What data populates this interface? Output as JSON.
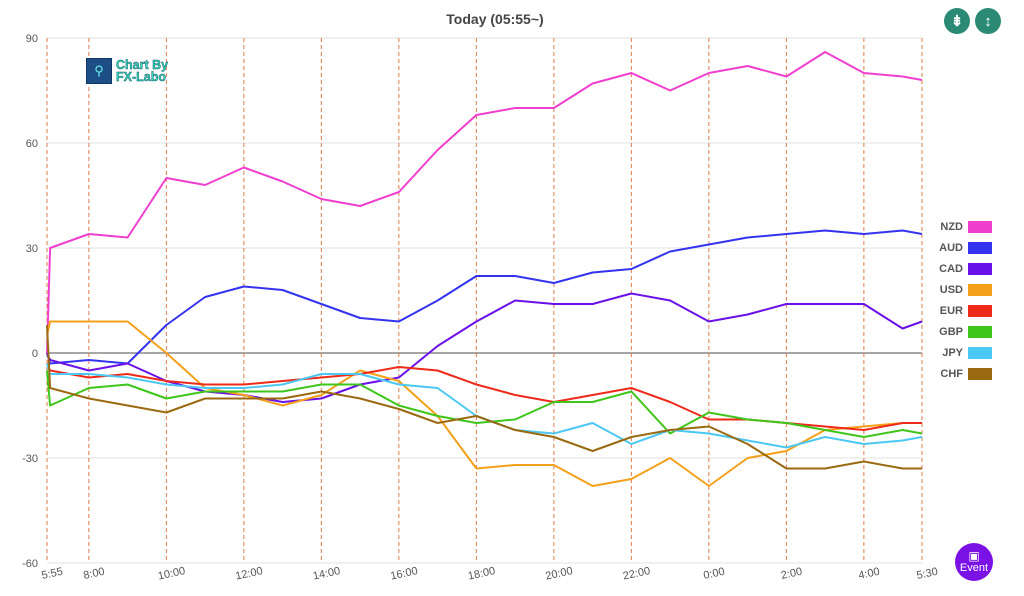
{
  "chart_data": {
    "type": "line",
    "title": "Today  (05:55~)",
    "xlabel": "",
    "ylabel": "",
    "ylim": [
      -60,
      90
    ],
    "xlim": [
      6.92,
      29.5
    ],
    "grid": true,
    "legend_position": "right",
    "y_ticks": [
      90,
      60,
      30,
      0,
      -30,
      -60
    ],
    "x_ticks": [
      {
        "label": "5:55",
        "x": 6.92
      },
      {
        "label": "8:00",
        "x": 8
      },
      {
        "label": "10:00",
        "x": 10
      },
      {
        "label": "12:00",
        "x": 12
      },
      {
        "label": "14:00",
        "x": 14
      },
      {
        "label": "16:00",
        "x": 16
      },
      {
        "label": "18:00",
        "x": 18
      },
      {
        "label": "20:00",
        "x": 20
      },
      {
        "label": "22:00",
        "x": 22
      },
      {
        "label": "0:00",
        "x": 24
      },
      {
        "label": "2:00",
        "x": 26
      },
      {
        "label": "4:00",
        "x": 28
      },
      {
        "label": "5:30",
        "x": 29.5
      }
    ],
    "x": [
      6.92,
      7,
      8,
      9,
      10,
      11,
      12,
      13,
      14,
      15,
      16,
      17,
      18,
      19,
      20,
      21,
      22,
      23,
      24,
      25,
      26,
      27,
      28,
      29,
      29.5
    ],
    "series": [
      {
        "name": "NZD",
        "color": "#f03fcf",
        "values": [
          0,
          30,
          34,
          33,
          50,
          48,
          53,
          49,
          44,
          42,
          46,
          58,
          68,
          70,
          70,
          77,
          80,
          75,
          80,
          82,
          79,
          86,
          80,
          79,
          78
        ]
      },
      {
        "name": "AUD",
        "color": "#3333f0",
        "values": [
          0,
          -3,
          -2,
          -3,
          8,
          16,
          19,
          18,
          14,
          10,
          9,
          15,
          22,
          22,
          20,
          23,
          24,
          29,
          31,
          33,
          34,
          35,
          34,
          35,
          34
        ]
      },
      {
        "name": "CAD",
        "color": "#6a10e8",
        "values": [
          0,
          -2,
          -5,
          -3,
          -8,
          -11,
          -12,
          -14,
          -13,
          -9,
          -7,
          2,
          9,
          15,
          14,
          14,
          17,
          15,
          9,
          11,
          14,
          14,
          14,
          7,
          9
        ]
      },
      {
        "name": "USD",
        "color": "#f4a01a",
        "values": [
          5,
          9,
          9,
          9,
          0,
          -10,
          -12,
          -15,
          -12,
          -5,
          -8,
          -18,
          -33,
          -32,
          -32,
          -38,
          -36,
          -30,
          -38,
          -30,
          -28,
          -22,
          -21,
          -20,
          -20
        ]
      },
      {
        "name": "EUR",
        "color": "#ee2a1a",
        "values": [
          -3,
          -5,
          -7,
          -6,
          -8,
          -9,
          -9,
          -8,
          -7,
          -6,
          -4,
          -5,
          -9,
          -12,
          -14,
          -12,
          -10,
          -14,
          -19,
          -19,
          -20,
          -21,
          -22,
          -20,
          -20
        ]
      },
      {
        "name": "GBP",
        "color": "#3fc61a",
        "values": [
          -5,
          -15,
          -10,
          -9,
          -13,
          -11,
          -11,
          -11,
          -9,
          -9,
          -15,
          -18,
          -20,
          -19,
          -14,
          -14,
          -11,
          -23,
          -17,
          -19,
          -20,
          -22,
          -24,
          -22,
          -23
        ]
      },
      {
        "name": "JPY",
        "color": "#4cc8f4",
        "values": [
          -3,
          -6,
          -6,
          -7,
          -9,
          -10,
          -10,
          -9,
          -6,
          -6,
          -9,
          -10,
          -18,
          -22,
          -23,
          -20,
          -26,
          -22,
          -23,
          -25,
          -27,
          -24,
          -26,
          -25,
          -24
        ]
      },
      {
        "name": "CHF",
        "color": "#9a6a10",
        "values": [
          8,
          -10,
          -13,
          -15,
          -17,
          -13,
          -13,
          -13,
          -11,
          -13,
          -16,
          -20,
          -18,
          -22,
          -24,
          -28,
          -24,
          -22,
          -21,
          -26,
          -33,
          -33,
          -31,
          -33,
          -33
        ]
      }
    ]
  },
  "logo": {
    "line1": "Chart By",
    "line2": "FX-Labo"
  },
  "buttons": {
    "compress_icon": "compress-vertical-icon",
    "expand_icon": "expand-vertical-icon",
    "event_label": "Event",
    "event_icon": "calendar-icon"
  }
}
